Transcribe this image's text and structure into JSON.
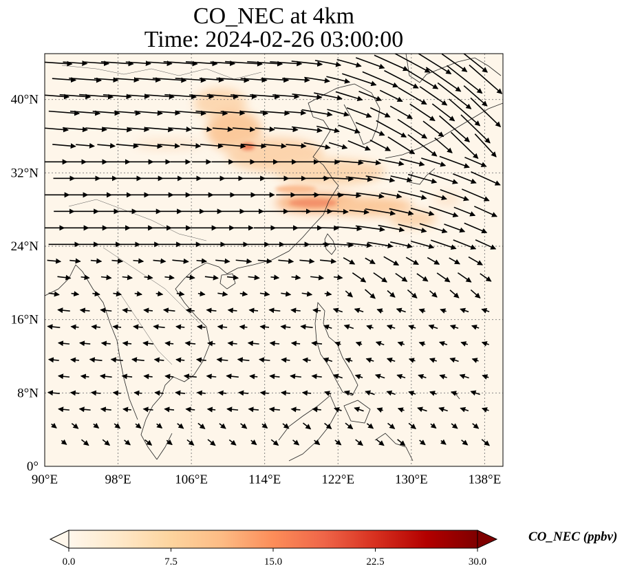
{
  "title": {
    "line1": "CO_NEC at 4km",
    "line2": "Time: 2024-02-26 03:00:00"
  },
  "map": {
    "lon_range": [
      90,
      140
    ],
    "lat_range": [
      0,
      45
    ],
    "lon_ticks": [
      "90°E",
      "98°E",
      "106°E",
      "114°E",
      "122°E",
      "130°E",
      "138°E"
    ],
    "lon_tick_values": [
      90,
      98,
      106,
      114,
      122,
      130,
      138
    ],
    "lat_ticks": [
      "0°",
      "8°N",
      "16°N",
      "24°N",
      "32°N",
      "40°N"
    ],
    "lat_tick_values": [
      0,
      8,
      16,
      24,
      32,
      40
    ],
    "gridlines": "dotted",
    "field": "CO_NEC",
    "wind_vectors": true
  },
  "colorbar": {
    "label": "CO_NEC (ppbv)",
    "ticks": [
      "0.0",
      "7.5",
      "15.0",
      "22.5",
      "30.0"
    ],
    "range": [
      0,
      30
    ],
    "extend": "both",
    "colormap": "OrRd",
    "colors": [
      "#fff7ec",
      "#fee8c8",
      "#fdd49e",
      "#fdbb84",
      "#fc8d59",
      "#ef6548",
      "#d7301f",
      "#b30000",
      "#7f0000"
    ]
  }
}
